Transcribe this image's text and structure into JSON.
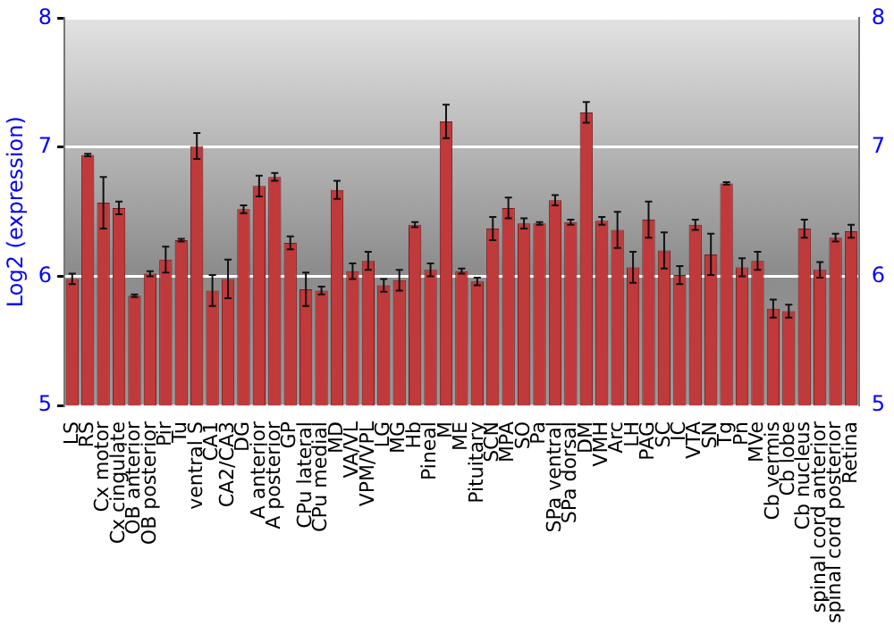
{
  "chart_data": {
    "type": "bar",
    "ylabel": "Log2 (expression)",
    "categories": [
      "LS",
      "RS",
      "Cx motor",
      "Cx cingulate",
      "OB anterior",
      "OB posterior",
      "Pir",
      "Tu",
      "ventral S",
      "CA1",
      "CA2/CA3",
      "DG",
      "A anterior",
      "A posterior",
      "GP",
      "CPu lateral",
      "CPu medial",
      "MD",
      "VA/VL",
      "VPM/VPL",
      "LG",
      "MG",
      "Hb",
      "Pineal",
      "M",
      "ME",
      "Pituitary",
      "SCN",
      "MPA",
      "SO",
      "Pa",
      "SPa ventral",
      "SPa dorsal",
      "DM",
      "VMH",
      "Arc",
      "LH",
      "PAG",
      "SC",
      "IC",
      "VTA",
      "SN",
      "Tg",
      "Pn",
      "MVe",
      "Cb vermis",
      "Cb lobe",
      "Cb nucleus",
      "spinal cord anterior",
      "spinal cord posterior",
      "Retina"
    ],
    "series": [
      {
        "color": "#c0393b",
        "values": [
          5.98,
          6.94,
          6.57,
          6.53,
          5.85,
          6.02,
          6.13,
          6.28,
          7.01,
          5.89,
          5.98,
          6.52,
          6.7,
          6.77,
          6.26,
          5.9,
          5.89,
          6.67,
          6.04,
          6.12,
          5.93,
          5.97,
          6.4,
          6.05,
          7.2,
          6.04,
          5.96,
          6.37,
          6.53,
          6.41,
          6.41,
          6.59,
          6.42,
          7.27,
          6.43,
          6.36,
          6.07,
          6.44,
          6.2,
          6.01,
          6.4,
          6.17,
          6.72,
          6.07,
          6.12,
          5.75,
          5.73,
          6.37,
          6.05,
          6.3,
          6.35
        ],
        "errors": [
          0.04,
          0.01,
          0.2,
          0.05,
          0.01,
          0.02,
          0.1,
          0.01,
          0.1,
          0.12,
          0.15,
          0.03,
          0.08,
          0.03,
          0.05,
          0.13,
          0.03,
          0.07,
          0.06,
          0.07,
          0.05,
          0.08,
          0.02,
          0.05,
          0.13,
          0.02,
          0.03,
          0.09,
          0.08,
          0.04,
          0.01,
          0.04,
          0.02,
          0.08,
          0.03,
          0.14,
          0.12,
          0.14,
          0.14,
          0.07,
          0.04,
          0.16,
          0.01,
          0.07,
          0.07,
          0.07,
          0.05,
          0.07,
          0.06,
          0.03,
          0.05
        ]
      }
    ],
    "ylim": [
      5,
      8
    ],
    "yticks": [
      5,
      6,
      7,
      8
    ],
    "y2lim": [
      5,
      8
    ],
    "y2ticks": [
      5,
      6,
      7,
      8
    ],
    "grid": "y"
  }
}
